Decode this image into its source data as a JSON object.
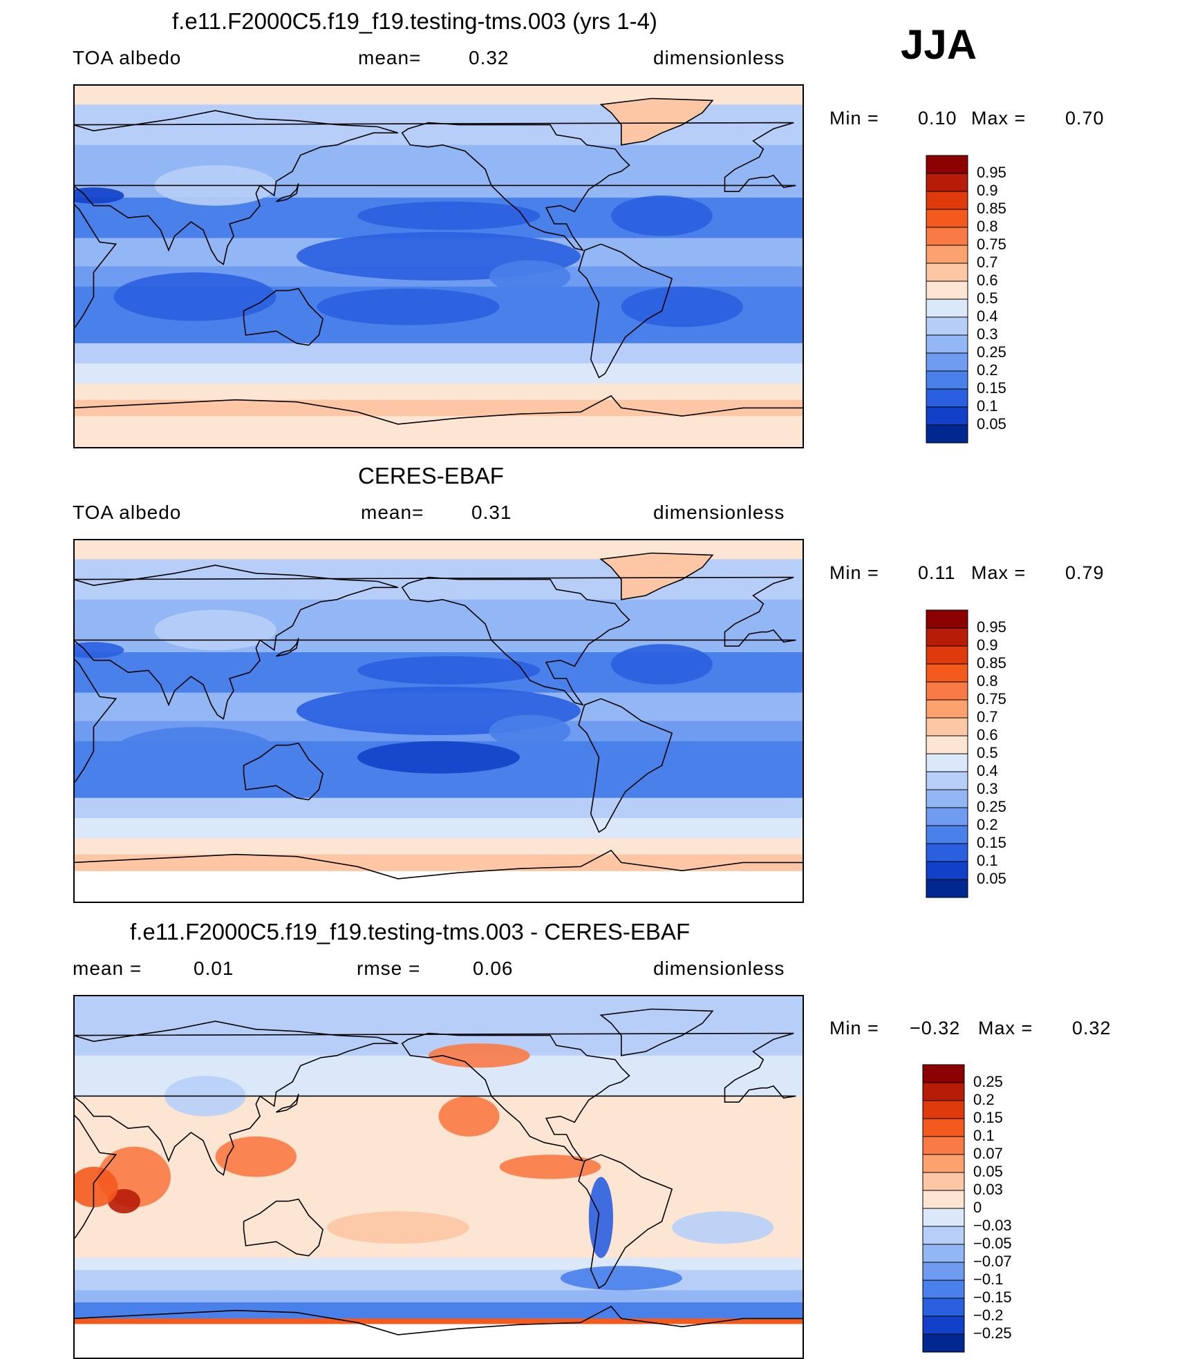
{
  "season": "JJA",
  "panels": [
    {
      "title": "f.e11.F2000C5.f19_f19.testing-tms.003 (yrs 1-4)",
      "left": "TOA  albedo",
      "middle_label": "mean=",
      "middle_value": "0.32",
      "right": "dimensionless",
      "min_label": "Min  =",
      "min_value": "0.10",
      "max_label": "Max  =",
      "max_value": "0.70",
      "field": "model"
    },
    {
      "title": "CERES-EBAF",
      "left": "TOA  albedo",
      "middle_label": "mean=",
      "middle_value": "0.31",
      "right": "dimensionless",
      "min_label": "Min  =",
      "min_value": "0.11",
      "max_label": "Max  =",
      "max_value": "0.79",
      "field": "obs"
    },
    {
      "title": "f.e11.F2000C5.f19_f19.testing-tms.003 - CERES-EBAF",
      "left": "mean  =",
      "left_value": "0.01",
      "middle_label": "rmse  =",
      "middle_value": "0.06",
      "right": "dimensionless",
      "min_label": "Min  =",
      "min_value": "−0.32",
      "max_label": "Max  =",
      "max_value": "0.32",
      "field": "diff"
    }
  ],
  "colorbars": {
    "absolute": {
      "labels": [
        "0.95",
        "0.9",
        "0.85",
        "0.8",
        "0.75",
        "0.7",
        "0.6",
        "0.5",
        "0.4",
        "0.3",
        "0.25",
        "0.2",
        "0.15",
        "0.1",
        "0.05"
      ],
      "colors": [
        "#8b0000",
        "#b71c08",
        "#de3a0c",
        "#f45a1e",
        "#fa7a45",
        "#fca26f",
        "#fdc6a4",
        "#fde5d3",
        "#dbe8fa",
        "#b7cff8",
        "#93b6f5",
        "#6f9cf0",
        "#4a80ea",
        "#2a5fe0",
        "#1240c8",
        "#002890"
      ]
    },
    "difference": {
      "labels": [
        "0.25",
        "0.2",
        "0.15",
        "0.1",
        "0.07",
        "0.05",
        "0.03",
        "0",
        "−0.03",
        "−0.05",
        "−0.07",
        "−0.1",
        "−0.15",
        "−0.2",
        "−0.25"
      ],
      "colors": [
        "#8b0000",
        "#b71c08",
        "#de3a0c",
        "#f45a1e",
        "#fa7a45",
        "#fca26f",
        "#fdc6a4",
        "#fde5d3",
        "#dbe8fa",
        "#b7cff8",
        "#93b6f5",
        "#6f9cf0",
        "#4a80ea",
        "#2a5fe0",
        "#1240c8",
        "#002890"
      ]
    }
  }
}
